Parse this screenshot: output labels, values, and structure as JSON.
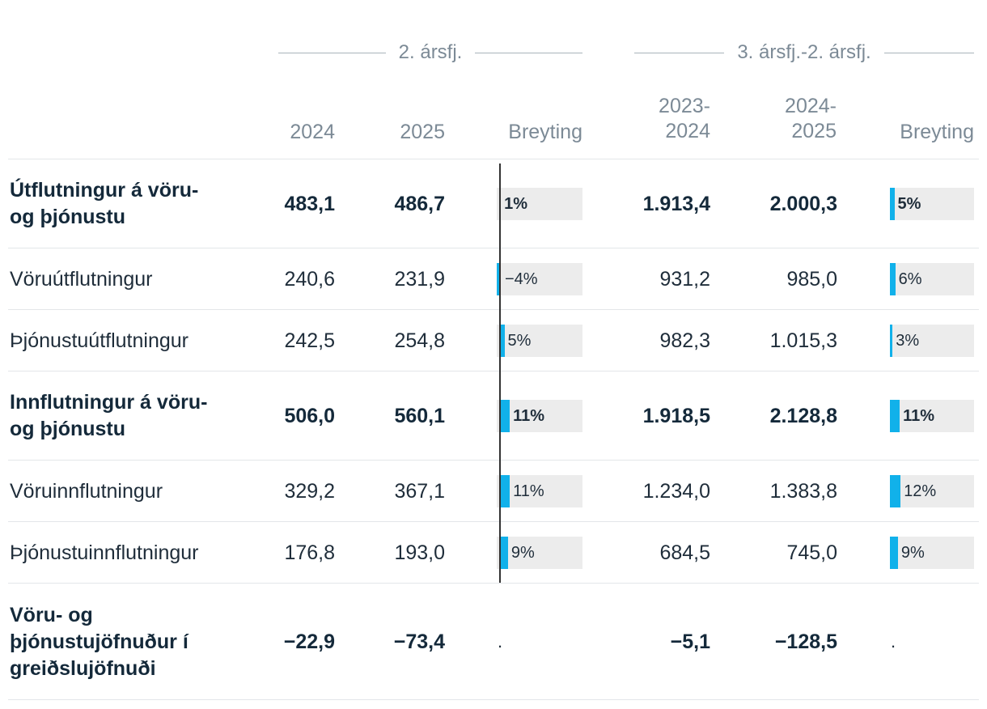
{
  "header": {
    "group1": "2. ársfj.",
    "group2": "3. ársfj.-2. ársfj.",
    "col_2024": "2024",
    "col_2025": "2025",
    "col_change1": "Breyting",
    "col_2023_2024_a": "2023-",
    "col_2023_2024_b": "2024",
    "col_2024_2025_a": "2024-",
    "col_2024_2025_b": "2025",
    "col_change2": "Breyting"
  },
  "colors": {
    "bar": "#11b1ea",
    "track": "#ececec",
    "header_text": "#7c8a96",
    "text": "#1f2d3a"
  },
  "chart_data": {
    "type": "table",
    "columns": [
      "2024",
      "2025",
      "Breyting",
      "2023-2024",
      "2024-2025",
      "Breyting"
    ],
    "rows": [
      {
        "label_lines": [
          "Útflutningur á vöru-",
          "og þjónustu"
        ],
        "bold": true,
        "v2024": "483,1",
        "v2025": "486,7",
        "change1": 1,
        "change1_text": "1%",
        "v2023_2024": "1.913,4",
        "v2024_2025": "2.000,3",
        "change2": 5,
        "change2_text": "5%"
      },
      {
        "label_lines": [
          "Vöruútflutningur"
        ],
        "bold": false,
        "v2024": "240,6",
        "v2025": "231,9",
        "change1": -4,
        "change1_text": "−4%",
        "v2023_2024": "931,2",
        "v2024_2025": "985,0",
        "change2": 6,
        "change2_text": "6%"
      },
      {
        "label_lines": [
          "Þjónustuútflutningur"
        ],
        "bold": false,
        "v2024": "242,5",
        "v2025": "254,8",
        "change1": 5,
        "change1_text": "5%",
        "v2023_2024": "982,3",
        "v2024_2025": "1.015,3",
        "change2": 3,
        "change2_text": "3%"
      },
      {
        "label_lines": [
          "Innflutningur á vöru-",
          "og þjónustu"
        ],
        "bold": true,
        "v2024": "506,0",
        "v2025": "560,1",
        "change1": 11,
        "change1_text": "11%",
        "v2023_2024": "1.918,5",
        "v2024_2025": "2.128,8",
        "change2": 11,
        "change2_text": "11%"
      },
      {
        "label_lines": [
          "Vöruinnflutningur"
        ],
        "bold": false,
        "v2024": "329,2",
        "v2025": "367,1",
        "change1": 11,
        "change1_text": "11%",
        "v2023_2024": "1.234,0",
        "v2024_2025": "1.383,8",
        "change2": 12,
        "change2_text": "12%"
      },
      {
        "label_lines": [
          "Þjónustuinnflutningur"
        ],
        "bold": false,
        "v2024": "176,8",
        "v2025": "193,0",
        "change1": 9,
        "change1_text": "9%",
        "v2023_2024": "684,5",
        "v2024_2025": "745,0",
        "change2": 9,
        "change2_text": "9%"
      },
      {
        "label_lines": [
          "Vöru- og",
          "þjónustujöfnuður í",
          "greiðslujöfnuði"
        ],
        "bold": true,
        "v2024": "−22,9",
        "v2025": "−73,4",
        "change1": null,
        "change1_text": ".",
        "v2023_2024": "−5,1",
        "v2024_2025": "−128,5",
        "change2": null,
        "change2_text": "."
      }
    ]
  }
}
